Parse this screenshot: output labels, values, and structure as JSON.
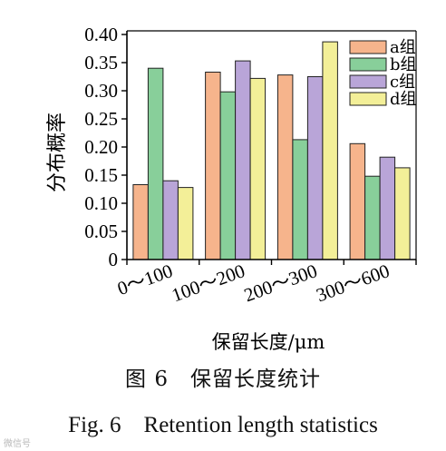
{
  "chart_data": {
    "type": "bar",
    "ylabel": "分布概率",
    "xlabel": "保留长度/μm",
    "categories": [
      "0～100",
      "100～200",
      "200～300",
      "300～600"
    ],
    "yticks": [
      "0",
      "0.05",
      "0.10",
      "0.15",
      "0.20",
      "0.25",
      "0.30",
      "0.35",
      "0.40"
    ],
    "ylim": [
      0,
      0.4
    ],
    "legend_position": "top-right",
    "grid": false,
    "series": [
      {
        "name": "a组",
        "color": "#f6b48c",
        "values": [
          0.133,
          0.333,
          0.328,
          0.206
        ]
      },
      {
        "name": "b组",
        "color": "#88cf9a",
        "values": [
          0.34,
          0.298,
          0.213,
          0.148
        ]
      },
      {
        "name": "c组",
        "color": "#b9a5d8",
        "values": [
          0.14,
          0.353,
          0.325,
          0.182
        ]
      },
      {
        "name": "d组",
        "color": "#f3ef98",
        "values": [
          0.128,
          0.322,
          0.387,
          0.163
        ]
      }
    ]
  },
  "caption": {
    "cn": "图 6　保留长度统计",
    "en": "Fig. 6　Retention length statistics"
  },
  "watermark": "微信号"
}
